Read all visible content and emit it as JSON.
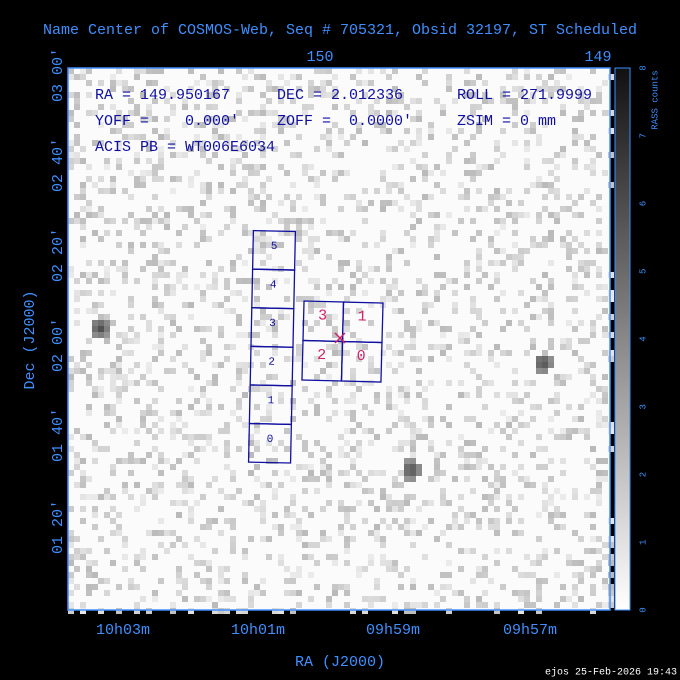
{
  "title": "Name Center of COSMOS-Web, Seq # 705321, Obsid 32197, ST Scheduled",
  "info": {
    "ra": "RA = 149.950167",
    "dec": "DEC = 2.012336",
    "roll": "ROLL = 271.9999",
    "yoff": "YOFF =    0.000'",
    "zoff": "ZOFF =  0.0000'",
    "zsim": "ZSIM = 0 mm",
    "acis": "ACIS PB = WT006E6034"
  },
  "axes": {
    "top_labels": [
      "150",
      "149"
    ],
    "left_labels": [
      "03 00'",
      "02 40'",
      "02 20'",
      "02 00'",
      "01 40'",
      "01 20'"
    ],
    "bottom_labels": [
      "10h03m",
      "10h01m",
      "09h59m",
      "09h57m"
    ],
    "y_title": "Dec (J2000)",
    "x_title": "RA (J2000)"
  },
  "colorbar": {
    "title": "RASS counts",
    "labels": [
      "0",
      "1",
      "2",
      "3",
      "4",
      "5",
      "6",
      "7",
      "8"
    ]
  },
  "chips": {
    "acis_s": [
      "0",
      "1",
      "2",
      "3",
      "4",
      "5"
    ],
    "acis_i": [
      "3",
      "1",
      "2",
      "0"
    ]
  },
  "footer": "ejos 25-Feb-2026 19:43"
}
